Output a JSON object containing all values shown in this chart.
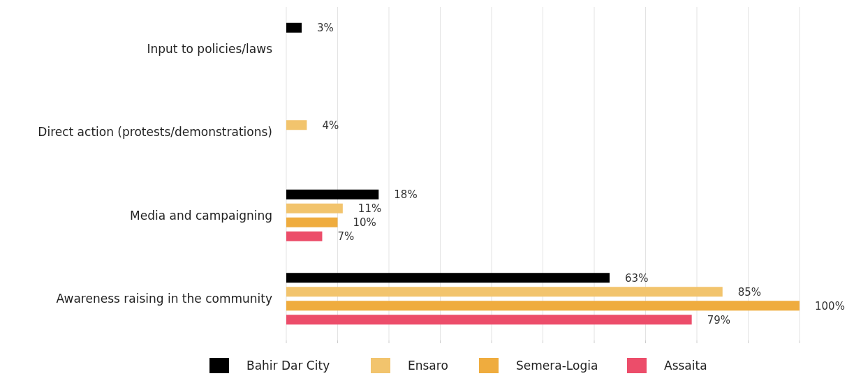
{
  "chart_data": {
    "type": "bar",
    "orientation": "horizontal",
    "categories": [
      "Input to policies/laws",
      "Direct action (protests/demonstrations)",
      "Media and campaigning",
      "Awareness raising in the community"
    ],
    "series": [
      {
        "name": "Bahir Dar City",
        "color": "#000000",
        "values": [
          3,
          null,
          18,
          63
        ],
        "value_labels": [
          "3%",
          null,
          "18%",
          "63%"
        ]
      },
      {
        "name": "Ensaro",
        "color": "#f2c46d",
        "values": [
          null,
          4,
          11,
          85
        ],
        "value_labels": [
          null,
          "4%",
          "11%",
          "85%"
        ]
      },
      {
        "name": "Semera-Logia",
        "color": "#efac3e",
        "values": [
          null,
          null,
          10,
          100
        ],
        "value_labels": [
          null,
          null,
          "10%",
          "100%"
        ]
      },
      {
        "name": "Assaita",
        "color": "#ec4d6a",
        "values": [
          null,
          null,
          7,
          79
        ],
        "value_labels": [
          null,
          null,
          "7%",
          "79%"
        ]
      }
    ],
    "xlim": [
      0,
      100
    ],
    "xticks": [
      {
        "value": 0,
        "label": null
      },
      {
        "value": 10,
        "label": null
      },
      {
        "value": 20,
        "label": null
      },
      {
        "value": 30,
        "label": null
      },
      {
        "value": 40,
        "label": null
      },
      {
        "value": 50,
        "label": null
      },
      {
        "value": 60,
        "label": null
      },
      {
        "value": 70,
        "label": null
      },
      {
        "value": 80,
        "label": null
      },
      {
        "value": 90,
        "label": null
      },
      {
        "value": 100,
        "label": null
      }
    ],
    "grid": "x",
    "tick_labels": "y",
    "legend": "bottom"
  }
}
